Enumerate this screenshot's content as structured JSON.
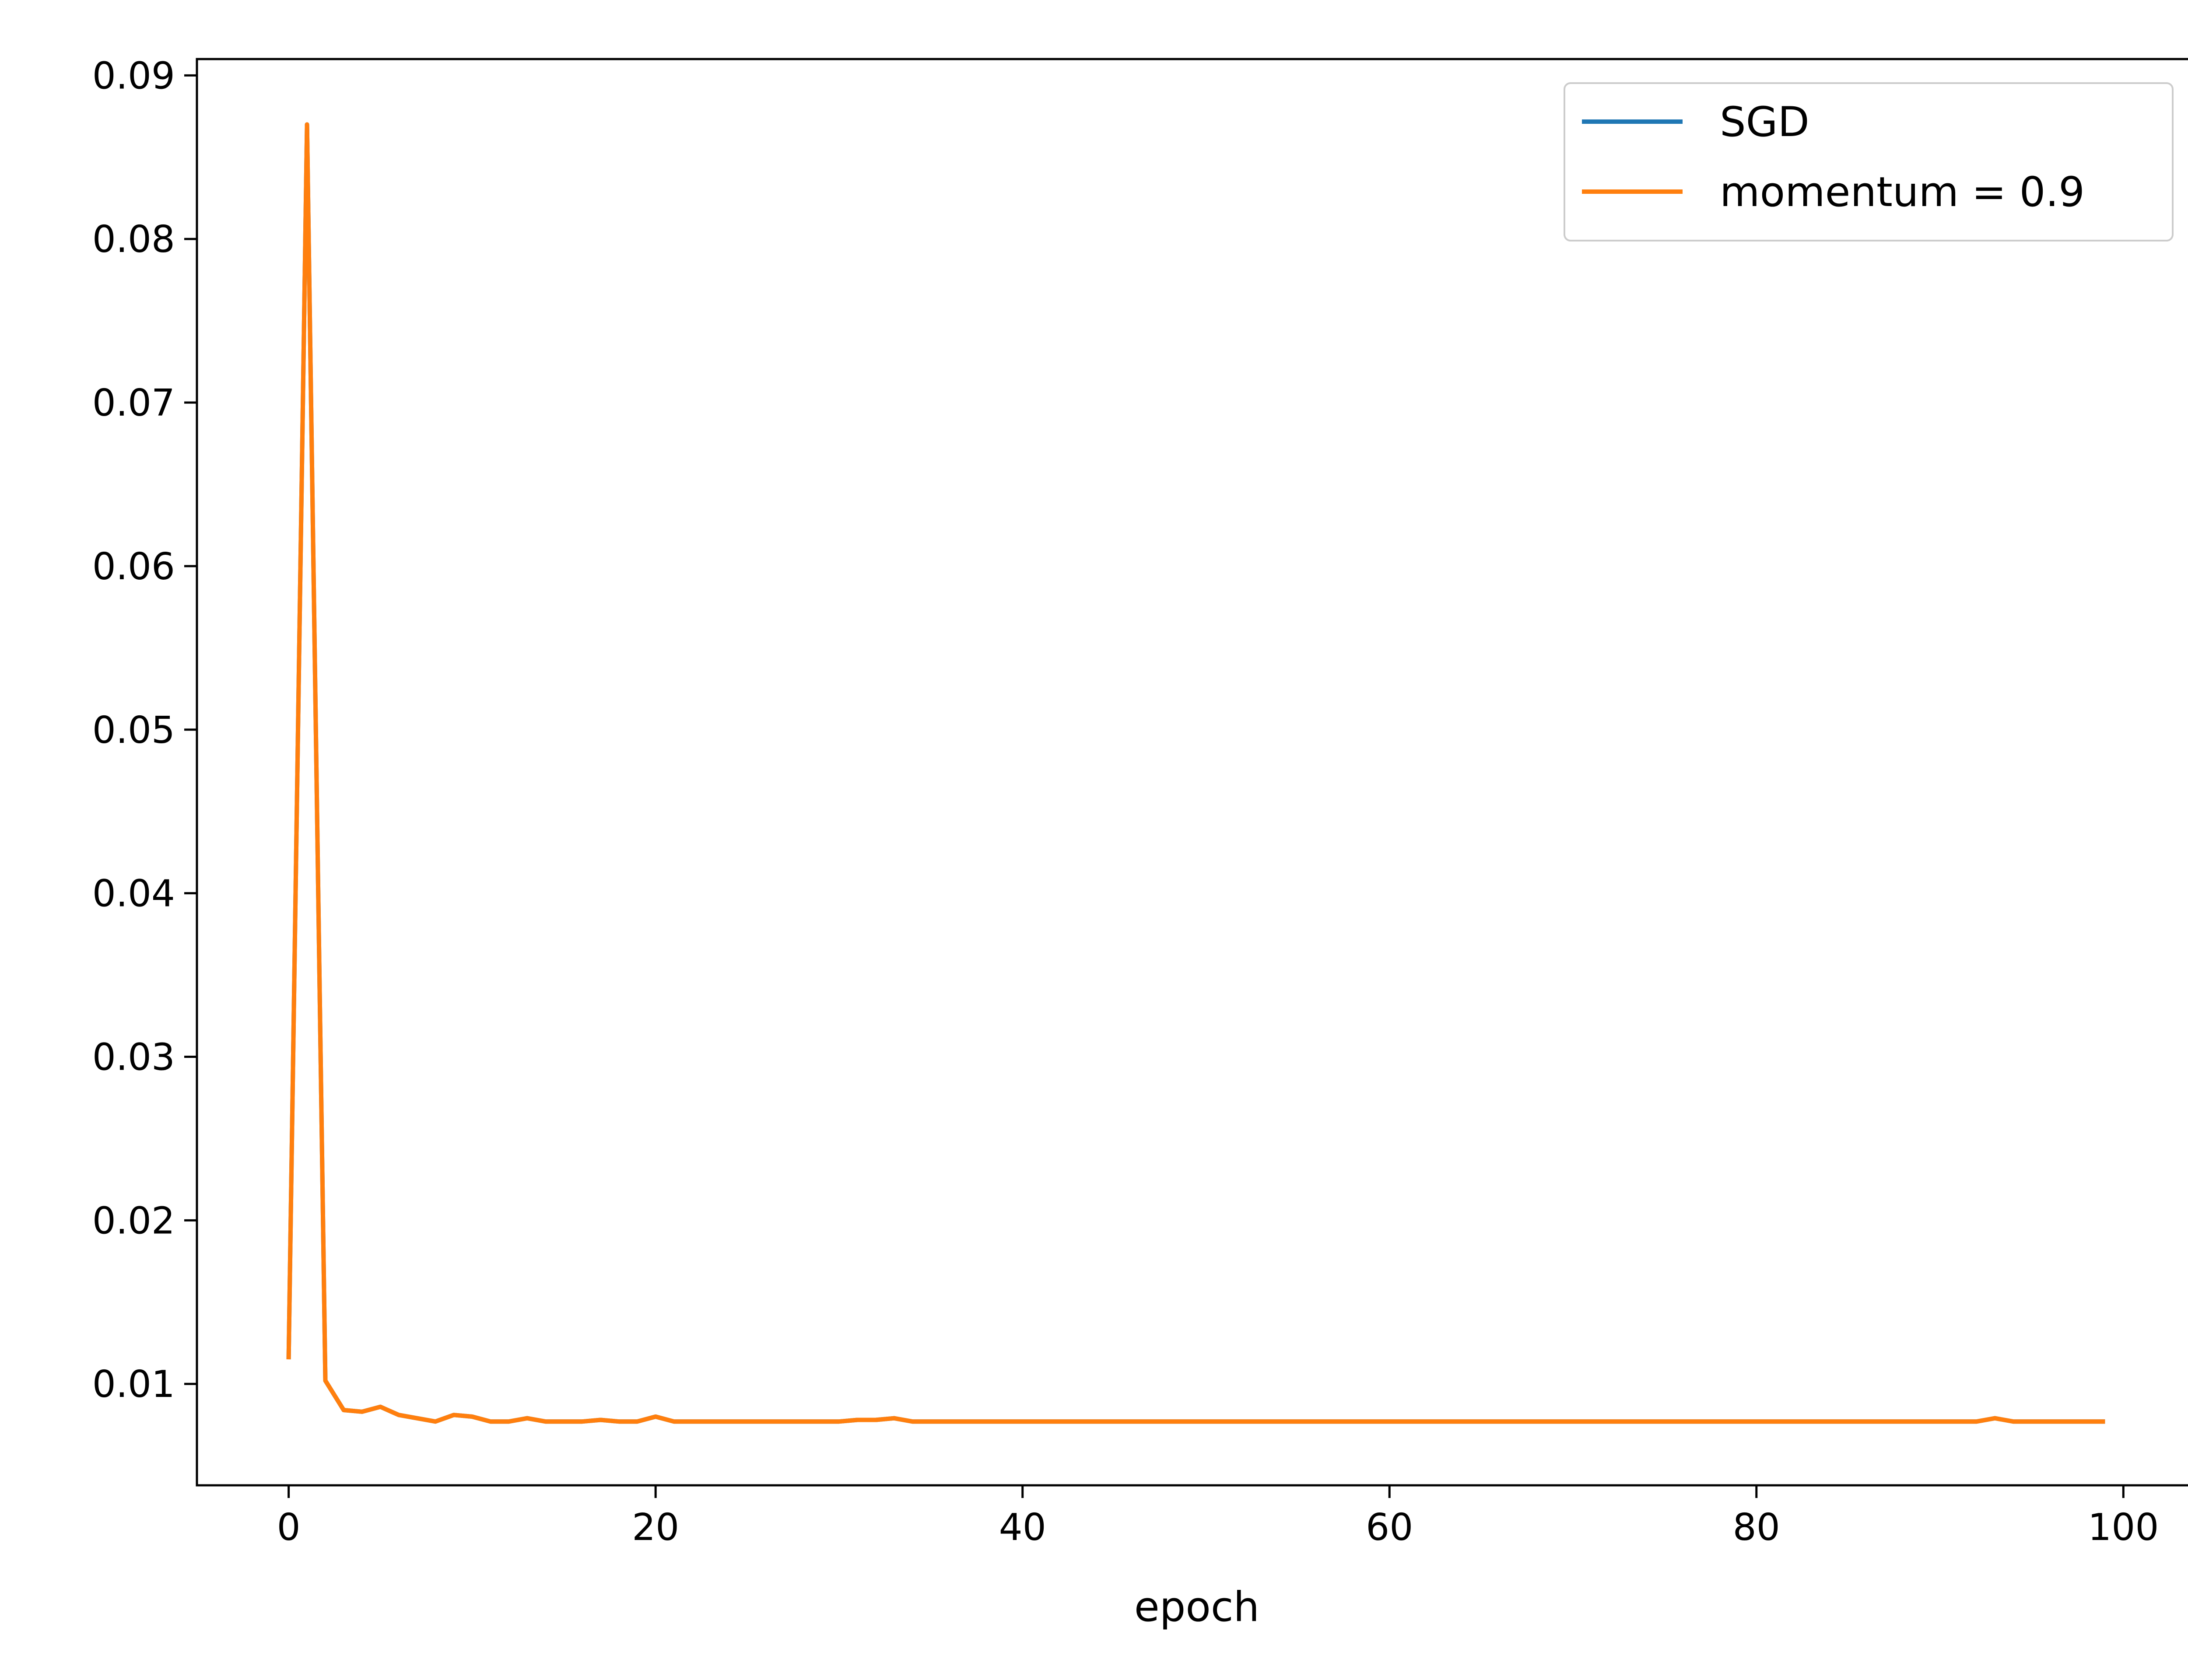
{
  "chart_data": {
    "type": "line",
    "title": "",
    "xlabel": "epoch",
    "ylabel": "",
    "xlim": [
      -5,
      104
    ],
    "ylim": [
      0.0038,
      0.091
    ],
    "xticks": [
      0,
      20,
      40,
      60,
      80,
      100
    ],
    "xtick_labels": [
      "0",
      "20",
      "40",
      "60",
      "80",
      "100"
    ],
    "yticks": [
      0.01,
      0.02,
      0.03,
      0.04,
      0.05,
      0.06,
      0.07,
      0.08,
      0.09
    ],
    "ytick_labels": [
      "0.01",
      "0.02",
      "0.03",
      "0.04",
      "0.05",
      "0.06",
      "0.07",
      "0.08",
      "0.09"
    ],
    "grid": false,
    "legend": {
      "position": "top-right",
      "entries": [
        "SGD",
        "momentum = 0.9"
      ]
    },
    "x": [
      0,
      1,
      2,
      3,
      4,
      5,
      6,
      7,
      8,
      9,
      10,
      11,
      12,
      13,
      14,
      15,
      16,
      17,
      18,
      19,
      20,
      21,
      22,
      23,
      24,
      25,
      26,
      27,
      28,
      29,
      30,
      31,
      32,
      33,
      34,
      35,
      36,
      37,
      38,
      39,
      40,
      41,
      42,
      43,
      44,
      45,
      46,
      47,
      48,
      49,
      50,
      51,
      52,
      53,
      54,
      55,
      56,
      57,
      58,
      59,
      60,
      61,
      62,
      63,
      64,
      65,
      66,
      67,
      68,
      69,
      70,
      71,
      72,
      73,
      74,
      75,
      76,
      77,
      78,
      79,
      80,
      81,
      82,
      83,
      84,
      85,
      86,
      87,
      88,
      89,
      90,
      91,
      92,
      93,
      94,
      95,
      96,
      97,
      98,
      99
    ],
    "series": [
      {
        "name": "SGD",
        "color": "#1f77b4",
        "values": [
          0.0115,
          0.087,
          0.0102,
          0.0084,
          0.0083,
          0.0086,
          0.0081,
          0.0079,
          0.0077,
          0.0081,
          0.008,
          0.0077,
          0.0077,
          0.0079,
          0.0077,
          0.0077,
          0.0077,
          0.0078,
          0.0077,
          0.0077,
          0.008,
          0.0077,
          0.0077,
          0.0077,
          0.0077,
          0.0077,
          0.0077,
          0.0077,
          0.0077,
          0.0077,
          0.0077,
          0.0078,
          0.0078,
          0.0079,
          0.0077,
          0.0077,
          0.0077,
          0.0077,
          0.0077,
          0.0077,
          0.0077,
          0.0077,
          0.0077,
          0.0077,
          0.0077,
          0.0077,
          0.0077,
          0.0077,
          0.0077,
          0.0077,
          0.0077,
          0.0077,
          0.0077,
          0.0077,
          0.0077,
          0.0077,
          0.0077,
          0.0077,
          0.0077,
          0.0077,
          0.0077,
          0.0077,
          0.0077,
          0.0077,
          0.0077,
          0.0077,
          0.0077,
          0.0077,
          0.0077,
          0.0077,
          0.0077,
          0.0077,
          0.0077,
          0.0077,
          0.0077,
          0.0077,
          0.0077,
          0.0077,
          0.0077,
          0.0077,
          0.0077,
          0.0077,
          0.0077,
          0.0077,
          0.0077,
          0.0077,
          0.0077,
          0.0077,
          0.0077,
          0.0077,
          0.0077,
          0.0077,
          0.0077,
          0.0079,
          0.0077,
          0.0077,
          0.0077,
          0.0077,
          0.0077,
          0.0077
        ]
      },
      {
        "name": "momentum = 0.9",
        "color": "#ff7f0e",
        "values": [
          0.0115,
          0.087,
          0.0102,
          0.0084,
          0.0083,
          0.0086,
          0.0081,
          0.0079,
          0.0077,
          0.0081,
          0.008,
          0.0077,
          0.0077,
          0.0079,
          0.0077,
          0.0077,
          0.0077,
          0.0078,
          0.0077,
          0.0077,
          0.008,
          0.0077,
          0.0077,
          0.0077,
          0.0077,
          0.0077,
          0.0077,
          0.0077,
          0.0077,
          0.0077,
          0.0077,
          0.0078,
          0.0078,
          0.0079,
          0.0077,
          0.0077,
          0.0077,
          0.0077,
          0.0077,
          0.0077,
          0.0077,
          0.0077,
          0.0077,
          0.0077,
          0.0077,
          0.0077,
          0.0077,
          0.0077,
          0.0077,
          0.0077,
          0.0077,
          0.0077,
          0.0077,
          0.0077,
          0.0077,
          0.0077,
          0.0077,
          0.0077,
          0.0077,
          0.0077,
          0.0077,
          0.0077,
          0.0077,
          0.0077,
          0.0077,
          0.0077,
          0.0077,
          0.0077,
          0.0077,
          0.0077,
          0.0077,
          0.0077,
          0.0077,
          0.0077,
          0.0077,
          0.0077,
          0.0077,
          0.0077,
          0.0077,
          0.0077,
          0.0077,
          0.0077,
          0.0077,
          0.0077,
          0.0077,
          0.0077,
          0.0077,
          0.0077,
          0.0077,
          0.0077,
          0.0077,
          0.0077,
          0.0077,
          0.0079,
          0.0077,
          0.0077,
          0.0077,
          0.0077,
          0.0077,
          0.0077
        ]
      }
    ]
  }
}
